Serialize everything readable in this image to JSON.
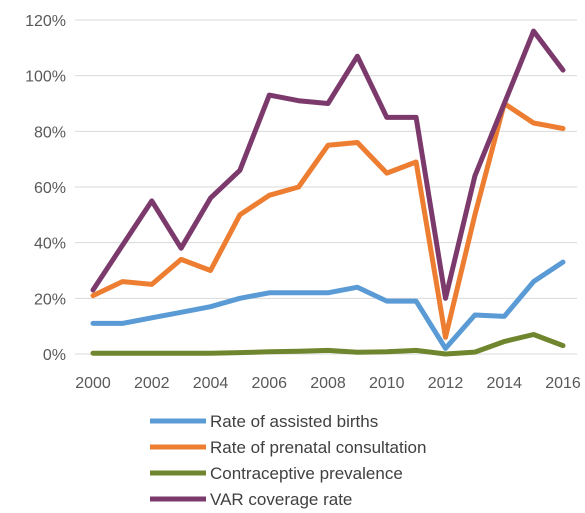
{
  "chart_data": {
    "type": "line",
    "title": "",
    "xlabel": "",
    "ylabel": "",
    "x": [
      2000,
      2001,
      2002,
      2003,
      2004,
      2005,
      2006,
      2007,
      2008,
      2009,
      2010,
      2011,
      2012,
      2013,
      2014,
      2015,
      2016
    ],
    "xticks": [
      "2000",
      "2002",
      "2004",
      "2006",
      "2008",
      "2010",
      "2012",
      "2014",
      "2016"
    ],
    "yticks": [
      "0%",
      "20%",
      "40%",
      "60%",
      "80%",
      "100%",
      "120%"
    ],
    "ylim": [
      0,
      120
    ],
    "grid": "horizontal",
    "legend_position": "bottom",
    "series": [
      {
        "name": "Rate of assisted births",
        "color": "#5B9BD5",
        "values": [
          11,
          11,
          13,
          15,
          17,
          20,
          22,
          22,
          22,
          24,
          19,
          19,
          2,
          14,
          13.5,
          26,
          33
        ]
      },
      {
        "name": "Rate of prenatal consultation",
        "color": "#ED7D31",
        "values": [
          21,
          26,
          25,
          34,
          30,
          50,
          57,
          60,
          75,
          76,
          65,
          69,
          6,
          50,
          90,
          83,
          81
        ]
      },
      {
        "name": "Contraceptive prevalence",
        "color": "#70862E",
        "values": [
          0.3,
          0.3,
          0.3,
          0.3,
          0.3,
          0.5,
          0.8,
          1,
          1.3,
          0.6,
          0.8,
          1.3,
          0,
          0.7,
          4.5,
          7,
          3
        ]
      },
      {
        "name": "VAR coverage rate",
        "color": "#7B3A6B",
        "values": [
          23,
          39,
          55,
          38,
          56,
          66,
          93,
          91,
          90,
          107,
          85,
          85,
          20,
          64,
          90,
          116,
          102
        ]
      }
    ]
  }
}
